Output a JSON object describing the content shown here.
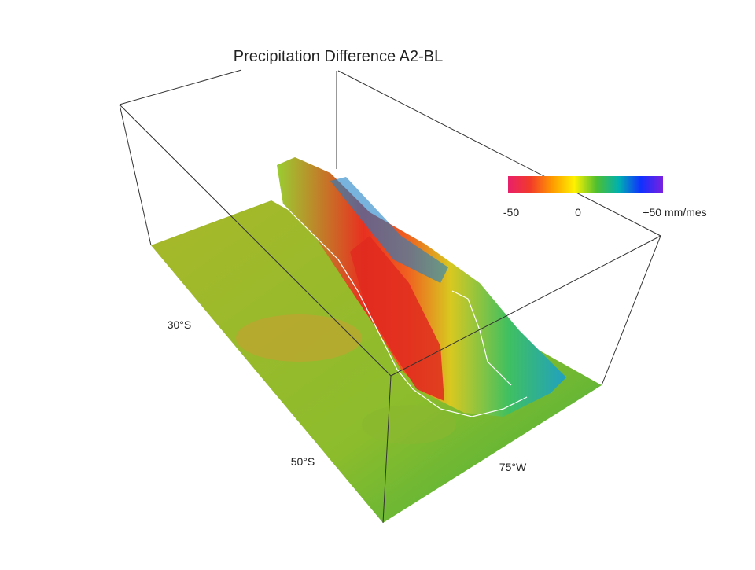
{
  "title": "Precipitation Difference A2-BL",
  "colorbar": {
    "labels": [
      "-50",
      "0",
      "+50 mm/mes"
    ],
    "colors": [
      "#e8206a",
      "#f23a2a",
      "#ff9a00",
      "#fff200",
      "#4fbf30",
      "#00b0b0",
      "#1030ff",
      "#7a20e0"
    ]
  },
  "axis_labels": [
    "30°S",
    "50°S",
    "75°W"
  ]
}
